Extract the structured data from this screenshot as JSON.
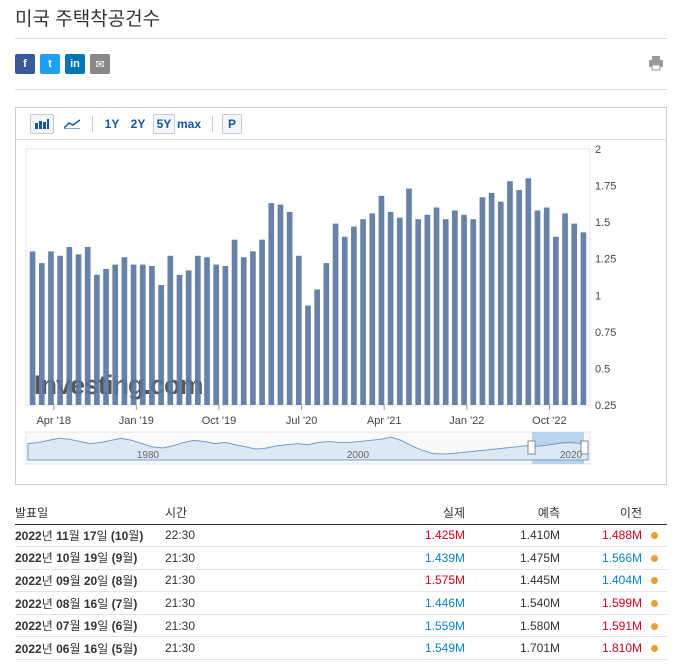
{
  "title": "미국 주택착공건수",
  "share": {
    "facebook": "f",
    "twitter": "t",
    "linkedin": "in",
    "email": "✉"
  },
  "toolbar": {
    "range_1y": "1Y",
    "range_2y": "2Y",
    "range_5y": "5Y",
    "range_max": "max",
    "p_button": "P"
  },
  "colors": {
    "bar": "#5a77a0",
    "positive": "#0c83c4",
    "negative": "#d0021b",
    "dot": "#e8a033"
  },
  "watermark": "Investing.com",
  "chart_data": {
    "type": "bar",
    "values": [
      1.3,
      1.22,
      1.3,
      1.27,
      1.33,
      1.28,
      1.33,
      1.14,
      1.18,
      1.21,
      1.26,
      1.21,
      1.21,
      1.2,
      1.07,
      1.27,
      1.14,
      1.17,
      1.27,
      1.26,
      1.21,
      1.2,
      1.38,
      1.26,
      1.3,
      1.38,
      1.63,
      1.62,
      1.57,
      1.27,
      0.93,
      1.04,
      1.22,
      1.49,
      1.4,
      1.47,
      1.52,
      1.56,
      1.68,
      1.57,
      1.53,
      1.73,
      1.52,
      1.55,
      1.6,
      1.52,
      1.58,
      1.55,
      1.52,
      1.67,
      1.7,
      1.64,
      1.78,
      1.72,
      1.8,
      1.58,
      1.6,
      1.4,
      1.56,
      1.49,
      1.43
    ],
    "xticks": [
      {
        "label": "Apr '18",
        "idx": 2.3
      },
      {
        "label": "Jan '19",
        "idx": 11.3
      },
      {
        "label": "Oct '19",
        "idx": 20.3
      },
      {
        "label": "Jul '20",
        "idx": 29.3
      },
      {
        "label": "Apr '21",
        "idx": 38.3
      },
      {
        "label": "Jan '22",
        "idx": 47.3
      },
      {
        "label": "Oct '22",
        "idx": 56.3
      }
    ],
    "yticks": [
      "0.25",
      "0.5",
      "0.75",
      "1",
      "1.25",
      "1.5",
      "1.75",
      "2"
    ],
    "ylim": [
      0.25,
      2
    ],
    "navigator_labels": [
      "1980",
      "2000",
      "2020"
    ],
    "navigator_series": [
      1.5,
      1.6,
      1.8,
      2.0,
      1.9,
      1.7,
      1.5,
      1.6,
      1.8,
      2.0,
      1.8,
      1.5,
      1.2,
      1.1,
      1.3,
      1.6,
      1.8,
      1.7,
      1.5,
      1.6,
      1.4,
      1.2,
      1.0,
      1.1,
      1.3,
      1.4,
      1.5,
      1.4,
      1.6,
      1.7,
      1.6,
      1.6,
      1.7,
      1.8,
      1.9,
      2.1,
      1.8,
      1.3,
      0.9,
      0.6,
      0.55,
      0.6,
      0.7,
      0.8,
      0.9,
      1.0,
      1.1,
      1.2,
      1.3,
      1.25,
      1.35,
      1.5,
      1.6,
      1.55,
      1.45
    ]
  },
  "table": {
    "headers": {
      "date": "발표일",
      "time": "시간",
      "actual": "실제",
      "forecast": "예측",
      "previous": "이전"
    },
    "rows": [
      {
        "year": "2022",
        "yu": "년",
        "month": "11",
        "mu": "월",
        "day": "17",
        "du": "일",
        "ref": "(10",
        "refu": "월",
        "close": ")",
        "time": "22:30",
        "actual": "1.425M",
        "actual_dir": "neg",
        "forecast": "1.410M",
        "previous": "1.488M",
        "previous_dir": "neg"
      },
      {
        "year": "2022",
        "yu": "년",
        "month": "10",
        "mu": "월",
        "day": "19",
        "du": "일",
        "ref": "(9",
        "refu": "월",
        "close": ")",
        "time": "21:30",
        "actual": "1.439M",
        "actual_dir": "pos",
        "forecast": "1.475M",
        "previous": "1.566M",
        "previous_dir": "pos"
      },
      {
        "year": "2022",
        "yu": "년",
        "month": "09",
        "mu": "월",
        "day": "20",
        "du": "일",
        "ref": "(8",
        "refu": "월",
        "close": ")",
        "time": "21:30",
        "actual": "1.575M",
        "actual_dir": "neg",
        "forecast": "1.445M",
        "previous": "1.404M",
        "previous_dir": "pos"
      },
      {
        "year": "2022",
        "yu": "년",
        "month": "08",
        "mu": "월",
        "day": "16",
        "du": "일",
        "ref": "(7",
        "refu": "월",
        "close": ")",
        "time": "21:30",
        "actual": "1.446M",
        "actual_dir": "pos",
        "forecast": "1.540M",
        "previous": "1.599M",
        "previous_dir": "neg"
      },
      {
        "year": "2022",
        "yu": "년",
        "month": "07",
        "mu": "월",
        "day": "19",
        "du": "일",
        "ref": "(6",
        "refu": "월",
        "close": ")",
        "time": "21:30",
        "actual": "1.559M",
        "actual_dir": "pos",
        "forecast": "1.580M",
        "previous": "1.591M",
        "previous_dir": "neg"
      },
      {
        "year": "2022",
        "yu": "년",
        "month": "06",
        "mu": "월",
        "day": "16",
        "du": "일",
        "ref": "(5",
        "refu": "월",
        "close": ")",
        "time": "21:30",
        "actual": "1.549M",
        "actual_dir": "pos",
        "forecast": "1.701M",
        "previous": "1.810M",
        "previous_dir": "neg"
      }
    ]
  }
}
